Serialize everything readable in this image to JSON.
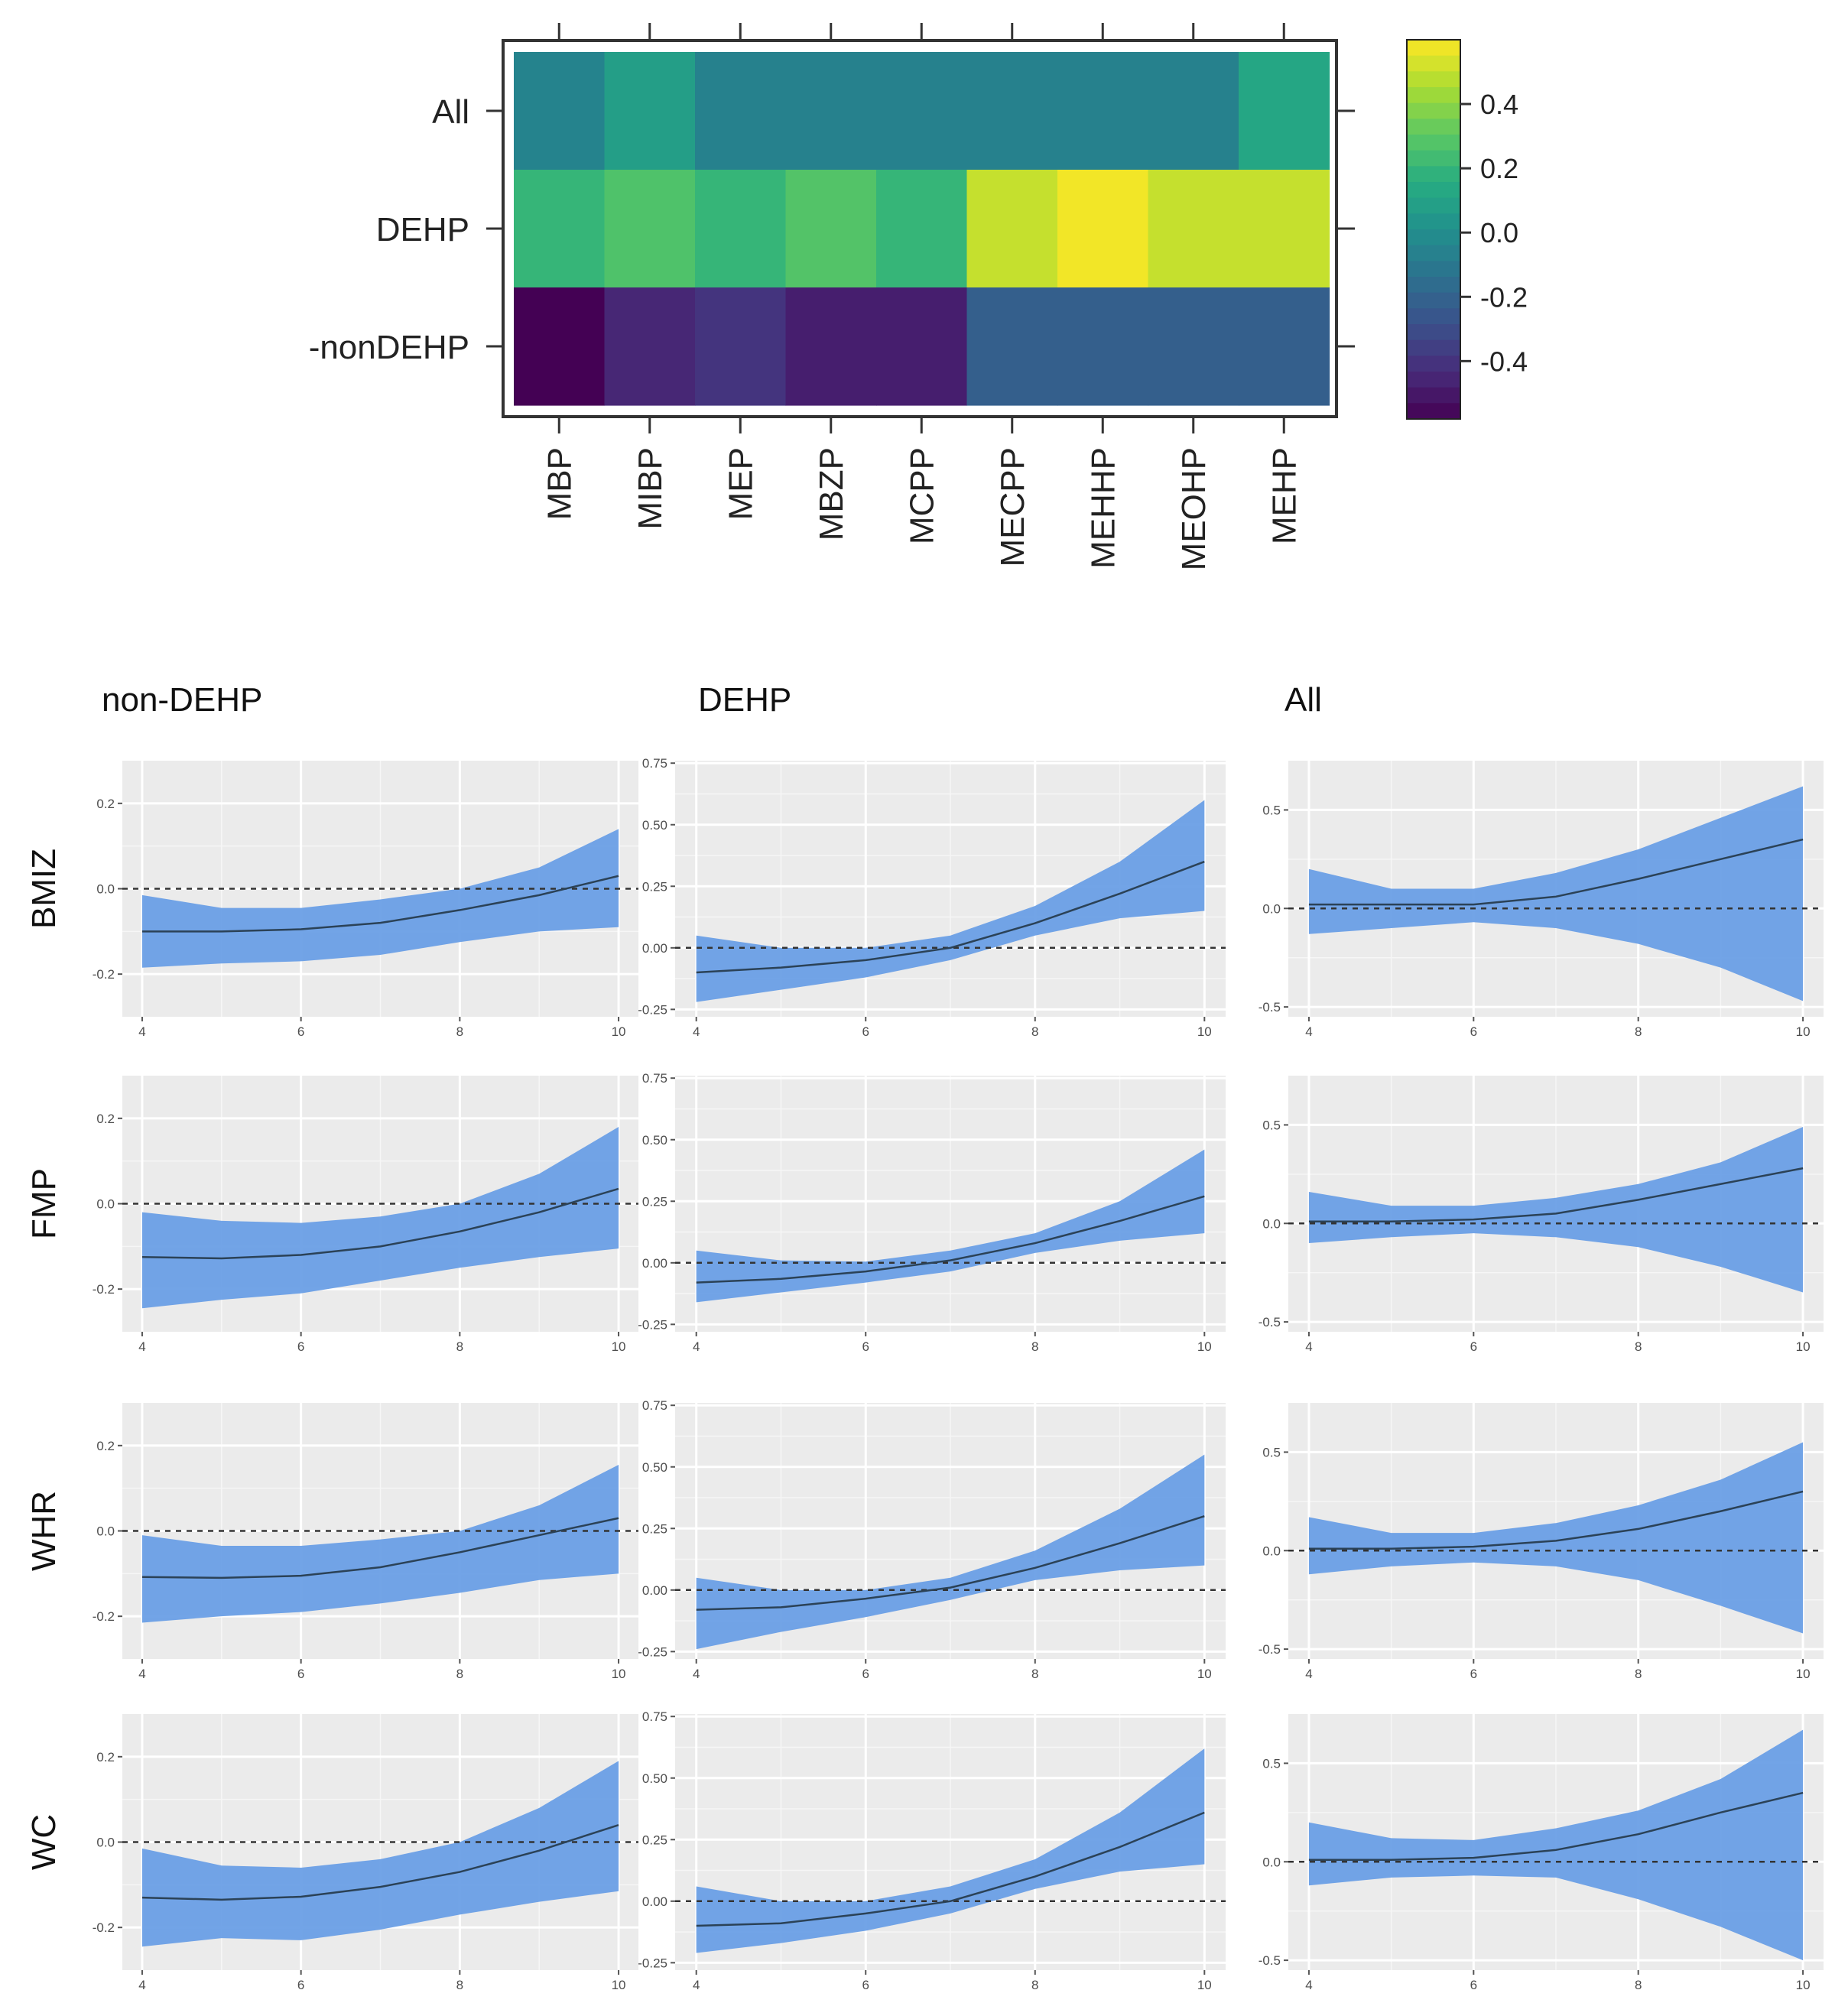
{
  "chart_data": [
    {
      "type": "heatmap",
      "rows": [
        "All",
        "DEHP",
        "-nonDEHP"
      ],
      "columns": [
        "MBP",
        "MIBP",
        "MEP",
        "MBZP",
        "MCPP",
        "MECPP",
        "MEHHP",
        "MEOHP",
        "MEHP"
      ],
      "values": [
        [
          -0.05,
          0.08,
          -0.06,
          -0.06,
          -0.06,
          -0.06,
          -0.06,
          -0.06,
          0.12
        ],
        [
          0.2,
          0.27,
          0.2,
          0.28,
          0.2,
          0.5,
          0.58,
          0.5,
          0.5
        ],
        [
          -0.58,
          -0.45,
          -0.4,
          -0.48,
          -0.48,
          -0.22,
          -0.22,
          -0.22,
          -0.22
        ]
      ],
      "colorbar": {
        "range": [
          -0.58,
          0.6
        ],
        "ticks": [
          0.4,
          0.2,
          0.0,
          -0.2,
          -0.4
        ],
        "tick_labels": [
          "0.4",
          "0.2",
          "0.0",
          "-0.2",
          "-0.4"
        ]
      }
    },
    {
      "type": "area",
      "layout": "facet-grid",
      "column_titles": [
        "non-DEHP",
        "DEHP",
        "All"
      ],
      "row_titles": [
        "BMIZ",
        "FMP",
        "WHR",
        "WC"
      ],
      "x": [
        4,
        5,
        6,
        7,
        8,
        9,
        10
      ],
      "x_ticks": [
        4,
        6,
        8,
        10
      ],
      "x_tick_labels": [
        "4",
        "6",
        "8",
        "10"
      ],
      "reference_line": 0,
      "color_band": "#6a9fe6",
      "color_line": "#2b4257",
      "columns": [
        {
          "ylim": [
            -0.3,
            0.3
          ],
          "y_ticks": [
            -0.2,
            0.0,
            0.2
          ],
          "y_tick_labels": [
            "-0.2",
            "0.0",
            "0.2"
          ],
          "panels": [
            {
              "fit": [
                -0.1,
                -0.1,
                -0.095,
                -0.08,
                -0.05,
                -0.015,
                0.03
              ],
              "lower": [
                -0.185,
                -0.175,
                -0.17,
                -0.155,
                -0.125,
                -0.1,
                -0.09
              ],
              "upper": [
                -0.015,
                -0.045,
                -0.045,
                -0.025,
                0.0,
                0.05,
                0.14
              ]
            },
            {
              "fit": [
                -0.125,
                -0.128,
                -0.12,
                -0.1,
                -0.065,
                -0.02,
                0.035
              ],
              "lower": [
                -0.245,
                -0.225,
                -0.21,
                -0.18,
                -0.15,
                -0.125,
                -0.105
              ],
              "upper": [
                -0.02,
                -0.04,
                -0.045,
                -0.03,
                0.0,
                0.07,
                0.18
              ]
            },
            {
              "fit": [
                -0.108,
                -0.11,
                -0.105,
                -0.085,
                -0.05,
                -0.01,
                0.03
              ],
              "lower": [
                -0.215,
                -0.2,
                -0.19,
                -0.17,
                -0.145,
                -0.115,
                -0.1
              ],
              "upper": [
                -0.01,
                -0.035,
                -0.035,
                -0.02,
                0.0,
                0.06,
                0.155
              ]
            },
            {
              "fit": [
                -0.13,
                -0.135,
                -0.128,
                -0.105,
                -0.07,
                -0.02,
                0.04
              ],
              "lower": [
                -0.245,
                -0.225,
                -0.23,
                -0.205,
                -0.17,
                -0.14,
                -0.115
              ],
              "upper": [
                -0.015,
                -0.055,
                -0.06,
                -0.04,
                0.0,
                0.08,
                0.19
              ]
            }
          ]
        },
        {
          "ylim": [
            -0.28,
            0.76
          ],
          "y_ticks": [
            -0.25,
            0.0,
            0.25,
            0.5,
            0.75
          ],
          "y_tick_labels": [
            "-0.25",
            "0.00",
            "0.25",
            "0.50",
            "0.75"
          ],
          "panels": [
            {
              "fit": [
                -0.1,
                -0.08,
                -0.05,
                0.0,
                0.1,
                0.22,
                0.35
              ],
              "lower": [
                -0.22,
                -0.17,
                -0.12,
                -0.05,
                0.05,
                0.12,
                0.15
              ],
              "upper": [
                0.05,
                0.0,
                0.0,
                0.05,
                0.17,
                0.35,
                0.6
              ]
            },
            {
              "fit": [
                -0.08,
                -0.065,
                -0.035,
                0.01,
                0.08,
                0.17,
                0.27
              ],
              "lower": [
                -0.16,
                -0.12,
                -0.08,
                -0.035,
                0.04,
                0.09,
                0.12
              ],
              "upper": [
                0.05,
                0.01,
                0.005,
                0.05,
                0.12,
                0.25,
                0.46
              ]
            },
            {
              "fit": [
                -0.08,
                -0.07,
                -0.035,
                0.01,
                0.09,
                0.19,
                0.3
              ],
              "lower": [
                -0.24,
                -0.17,
                -0.11,
                -0.04,
                0.04,
                0.08,
                0.1
              ],
              "upper": [
                0.05,
                0.0,
                0.0,
                0.05,
                0.16,
                0.33,
                0.55
              ]
            },
            {
              "fit": [
                -0.1,
                -0.09,
                -0.05,
                0.0,
                0.1,
                0.22,
                0.36
              ],
              "lower": [
                -0.21,
                -0.17,
                -0.12,
                -0.05,
                0.05,
                0.12,
                0.15
              ],
              "upper": [
                0.06,
                0.0,
                0.0,
                0.06,
                0.17,
                0.36,
                0.62
              ]
            }
          ]
        },
        {
          "ylim": [
            -0.55,
            0.75
          ],
          "y_ticks": [
            -0.5,
            0.0,
            0.5
          ],
          "y_tick_labels": [
            "-0.5",
            "0.0",
            "0.5"
          ],
          "panels": [
            {
              "fit": [
                0.02,
                0.02,
                0.02,
                0.06,
                0.15,
                0.25,
                0.35
              ],
              "lower": [
                -0.13,
                -0.1,
                -0.07,
                -0.1,
                -0.18,
                -0.3,
                -0.47
              ],
              "upper": [
                0.2,
                0.1,
                0.1,
                0.18,
                0.3,
                0.46,
                0.62
              ]
            },
            {
              "fit": [
                0.01,
                0.01,
                0.02,
                0.05,
                0.12,
                0.2,
                0.28
              ],
              "lower": [
                -0.1,
                -0.07,
                -0.05,
                -0.07,
                -0.12,
                -0.22,
                -0.35
              ],
              "upper": [
                0.16,
                0.09,
                0.09,
                0.13,
                0.2,
                0.31,
                0.49
              ]
            },
            {
              "fit": [
                0.01,
                0.01,
                0.02,
                0.05,
                0.11,
                0.2,
                0.3
              ],
              "lower": [
                -0.12,
                -0.08,
                -0.06,
                -0.08,
                -0.15,
                -0.28,
                -0.42
              ],
              "upper": [
                0.17,
                0.09,
                0.09,
                0.14,
                0.23,
                0.36,
                0.55
              ]
            },
            {
              "fit": [
                0.01,
                0.01,
                0.02,
                0.06,
                0.14,
                0.25,
                0.35
              ],
              "lower": [
                -0.12,
                -0.08,
                -0.07,
                -0.08,
                -0.19,
                -0.33,
                -0.5
              ],
              "upper": [
                0.2,
                0.12,
                0.11,
                0.17,
                0.26,
                0.42,
                0.67
              ]
            }
          ]
        }
      ]
    }
  ]
}
